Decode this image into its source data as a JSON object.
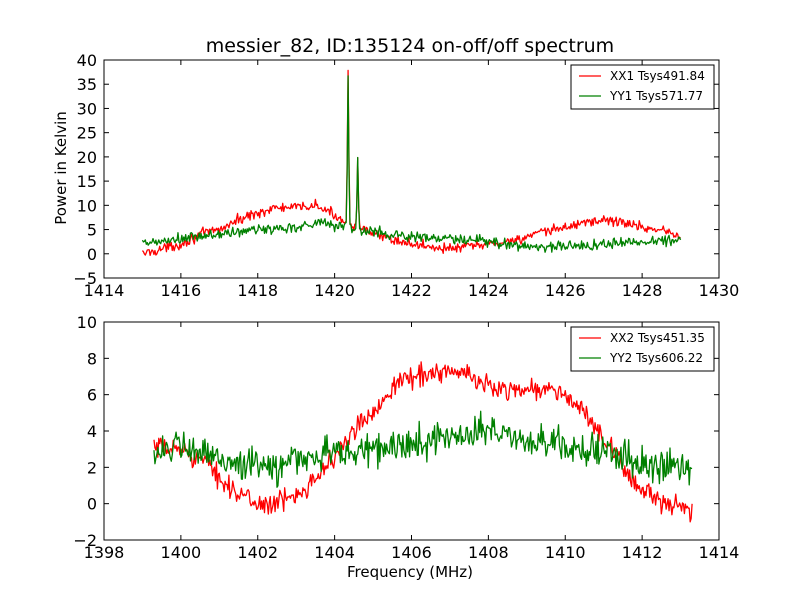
{
  "chart_data": [
    {
      "type": "line",
      "title": "messier_82, ID:135124 on-off/off spectrum",
      "xlabel": "",
      "ylabel": "Power in Kelvin",
      "xlim": [
        1414,
        1430
      ],
      "ylim": [
        -5,
        40
      ],
      "x_ticks": [
        "1414",
        "1416",
        "1418",
        "1420",
        "1422",
        "1424",
        "1426",
        "1428",
        "1430"
      ],
      "y_ticks": [
        "−5",
        "0",
        "5",
        "10",
        "15",
        "20",
        "25",
        "30",
        "35",
        "40"
      ],
      "legend_position": "top-right",
      "grid": false,
      "series": [
        {
          "name": "XX1 Tsys491.84",
          "color": "#ff0000",
          "x_range": [
            1415.0,
            1429.0
          ],
          "noise": 0.8,
          "baseline": [
            [
              1415.0,
              0.0
            ],
            [
              1416.0,
              2.0
            ],
            [
              1416.5,
              4.0
            ],
            [
              1417.0,
              5.0
            ],
            [
              1417.5,
              7.0
            ],
            [
              1418.0,
              8.5
            ],
            [
              1418.5,
              9.5
            ],
            [
              1419.0,
              9.5
            ],
            [
              1419.5,
              10.0
            ],
            [
              1420.0,
              8.0
            ],
            [
              1420.5,
              5.5
            ],
            [
              1421.0,
              4.0
            ],
            [
              1421.5,
              3.0
            ],
            [
              1422.0,
              2.0
            ],
            [
              1422.5,
              1.5
            ],
            [
              1423.0,
              1.0
            ],
            [
              1423.5,
              1.5
            ],
            [
              1424.0,
              2.0
            ],
            [
              1424.5,
              2.5
            ],
            [
              1425.0,
              3.5
            ],
            [
              1425.5,
              4.5
            ],
            [
              1426.0,
              5.5
            ],
            [
              1426.5,
              6.5
            ],
            [
              1427.0,
              7.0
            ],
            [
              1427.5,
              6.5
            ],
            [
              1428.0,
              5.5
            ],
            [
              1428.5,
              5.0
            ],
            [
              1429.0,
              3.5
            ]
          ],
          "peaks": [
            [
              1420.35,
              33.0,
              0.025
            ],
            [
              1420.6,
              15.0,
              0.025
            ]
          ]
        },
        {
          "name": "YY1 Tsys571.77",
          "color": "#008000",
          "x_range": [
            1415.0,
            1429.0
          ],
          "noise": 0.9,
          "baseline": [
            [
              1415.0,
              2.0
            ],
            [
              1416.0,
              3.0
            ],
            [
              1417.0,
              4.0
            ],
            [
              1418.0,
              5.0
            ],
            [
              1419.0,
              5.5
            ],
            [
              1419.5,
              6.5
            ],
            [
              1420.0,
              6.0
            ],
            [
              1420.5,
              5.0
            ],
            [
              1421.0,
              4.5
            ],
            [
              1422.0,
              3.5
            ],
            [
              1423.0,
              3.0
            ],
            [
              1424.0,
              2.5
            ],
            [
              1425.0,
              1.5
            ],
            [
              1426.0,
              1.5
            ],
            [
              1427.0,
              2.0
            ],
            [
              1428.0,
              2.5
            ],
            [
              1429.0,
              3.0
            ]
          ],
          "peaks": [
            [
              1420.35,
              31.0,
              0.025
            ],
            [
              1420.6,
              15.0,
              0.025
            ]
          ]
        }
      ]
    },
    {
      "type": "line",
      "title": "",
      "xlabel": "Frequency (MHz)",
      "ylabel": "",
      "xlim": [
        1398,
        1414
      ],
      "ylim": [
        -2,
        10
      ],
      "x_ticks": [
        "1398",
        "1400",
        "1402",
        "1404",
        "1406",
        "1408",
        "1410",
        "1412",
        "1414"
      ],
      "y_ticks": [
        "−2",
        "0",
        "2",
        "4",
        "6",
        "8",
        "10"
      ],
      "legend_position": "top-right",
      "grid": false,
      "series": [
        {
          "name": "XX2 Tsys451.35",
          "color": "#ff0000",
          "x_range": [
            1399.3,
            1413.3
          ],
          "noise": 0.45,
          "baseline": [
            [
              1399.3,
              3.0
            ],
            [
              1400.0,
              3.0
            ],
            [
              1400.5,
              2.5
            ],
            [
              1401.0,
              1.5
            ],
            [
              1401.5,
              0.5
            ],
            [
              1402.0,
              0.0
            ],
            [
              1402.5,
              0.0
            ],
            [
              1403.0,
              0.5
            ],
            [
              1403.5,
              1.5
            ],
            [
              1404.0,
              2.5
            ],
            [
              1404.5,
              4.0
            ],
            [
              1405.0,
              5.0
            ],
            [
              1405.5,
              6.5
            ],
            [
              1406.0,
              7.0
            ],
            [
              1406.5,
              7.2
            ],
            [
              1407.0,
              7.3
            ],
            [
              1407.5,
              7.0
            ],
            [
              1408.0,
              6.5
            ],
            [
              1408.5,
              6.3
            ],
            [
              1409.0,
              6.3
            ],
            [
              1409.5,
              6.3
            ],
            [
              1410.0,
              6.0
            ],
            [
              1410.5,
              5.0
            ],
            [
              1411.0,
              3.5
            ],
            [
              1411.5,
              2.0
            ],
            [
              1412.0,
              0.8
            ],
            [
              1412.5,
              0.0
            ],
            [
              1413.0,
              -0.3
            ],
            [
              1413.3,
              -0.5
            ]
          ],
          "peaks": []
        },
        {
          "name": "YY2 Tsys606.22",
          "color": "#008000",
          "x_range": [
            1399.3,
            1413.3
          ],
          "noise": 0.7,
          "baseline": [
            [
              1399.3,
              3.0
            ],
            [
              1400.0,
              3.0
            ],
            [
              1401.0,
              2.5
            ],
            [
              1402.0,
              2.0
            ],
            [
              1402.5,
              2.0
            ],
            [
              1403.0,
              2.5
            ],
            [
              1404.0,
              2.8
            ],
            [
              1405.0,
              3.0
            ],
            [
              1406.0,
              3.2
            ],
            [
              1407.0,
              3.8
            ],
            [
              1408.0,
              4.0
            ],
            [
              1409.0,
              3.5
            ],
            [
              1410.0,
              3.2
            ],
            [
              1411.0,
              2.8
            ],
            [
              1412.0,
              2.2
            ],
            [
              1413.3,
              2.0
            ]
          ],
          "peaks": []
        }
      ]
    }
  ]
}
